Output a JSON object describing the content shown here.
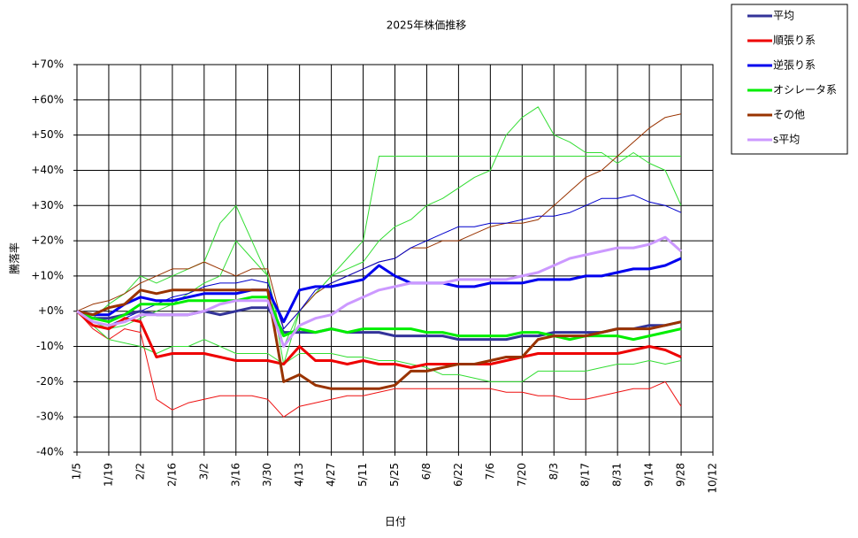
{
  "chart_data": {
    "type": "line",
    "title": "2025年株価推移",
    "x_label": "日付",
    "y_label": "騰落率",
    "categories": [
      "1/5",
      null,
      "1/19",
      null,
      "2/2",
      null,
      "2/16",
      null,
      "3/2",
      null,
      "3/16",
      null,
      "3/30",
      null,
      "4/13",
      null,
      "4/27",
      null,
      "5/11",
      null,
      "5/25",
      null,
      "6/8",
      null,
      "6/22",
      null,
      "7/6",
      null,
      "7/20",
      null,
      "8/3",
      null,
      "8/17",
      null,
      "8/31",
      null,
      "9/14",
      null,
      "9/28",
      null,
      "10/12"
    ],
    "ylim": [
      -40,
      70
    ],
    "yticks": [
      {
        "value": -40,
        "label": "-40%"
      },
      {
        "value": -30,
        "label": "-30%"
      },
      {
        "value": -20,
        "label": "-20%"
      },
      {
        "value": -10,
        "label": "-10%"
      },
      {
        "value": 0,
        "label": "+0%"
      },
      {
        "value": 10,
        "label": "+10%"
      },
      {
        "value": 20,
        "label": "+20%"
      },
      {
        "value": 30,
        "label": "+30%"
      },
      {
        "value": 40,
        "label": "+40%"
      },
      {
        "value": 50,
        "label": "+50%"
      },
      {
        "value": 60,
        "label": "+60%"
      },
      {
        "value": 70,
        "label": "+70%"
      }
    ],
    "grid": true,
    "legend": "top-right",
    "series": [
      {
        "color": "#33dd33",
        "values": [
          0,
          -2,
          2,
          5,
          10,
          8,
          10,
          12,
          14,
          25,
          30,
          20,
          10,
          -10,
          0,
          5,
          10,
          15,
          20,
          44,
          44,
          44,
          44,
          44,
          44,
          44,
          44,
          44,
          44,
          44,
          44,
          44,
          44,
          44,
          44,
          44,
          44,
          44,
          44,
          null,
          null
        ]
      },
      {
        "color": "#33dd33",
        "values": [
          0,
          -3,
          -5,
          -4,
          -2,
          0,
          2,
          5,
          8,
          10,
          20,
          15,
          10,
          -15,
          0,
          5,
          10,
          12,
          14,
          20,
          24,
          26,
          30,
          32,
          35,
          38,
          40,
          50,
          55,
          58,
          50,
          48,
          45,
          45,
          42,
          45,
          42,
          40,
          30,
          null,
          null
        ]
      },
      {
        "color": "#ee1111",
        "values": [
          0,
          -5,
          -8,
          -5,
          -6,
          -25,
          -28,
          -26,
          -25,
          -24,
          -24,
          -24,
          -25,
          -30,
          -27,
          -26,
          -25,
          -24,
          -24,
          -23,
          -22,
          -22,
          -22,
          -22,
          -22,
          -22,
          -22,
          -23,
          -23,
          -24,
          -24,
          -25,
          -25,
          -24,
          -23,
          -22,
          -22,
          -20,
          -27,
          null,
          null
        ]
      },
      {
        "color": "#993300",
        "values": [
          0,
          2,
          3,
          5,
          8,
          10,
          12,
          12,
          14,
          12,
          10,
          12,
          12,
          -5,
          0,
          5,
          8,
          10,
          12,
          14,
          15,
          18,
          18,
          20,
          20,
          22,
          24,
          25,
          25,
          26,
          30,
          34,
          38,
          40,
          44,
          48,
          52,
          55,
          56,
          null,
          null
        ]
      },
      {
        "color": "#0000cc",
        "values": [
          0,
          -3,
          -4,
          -2,
          0,
          2,
          4,
          5,
          7,
          8,
          8,
          9,
          8,
          -5,
          0,
          6,
          8,
          10,
          12,
          14,
          15,
          18,
          20,
          22,
          24,
          24,
          25,
          25,
          26,
          27,
          27,
          28,
          30,
          32,
          32,
          33,
          31,
          30,
          28,
          null,
          null
        ]
      },
      {
        "color": "#33dd33",
        "values": [
          0,
          -4,
          -8,
          -9,
          -10,
          -12,
          -10,
          -10,
          -8,
          -10,
          -12,
          -12,
          -12,
          -15,
          -12,
          -12,
          -12,
          -13,
          -13,
          -14,
          -14,
          -15,
          -16,
          -18,
          -18,
          -19,
          -20,
          -20,
          -20,
          -17,
          -17,
          -17,
          -17,
          -16,
          -15,
          -15,
          -14,
          -15,
          -14,
          null,
          null
        ]
      },
      {
        "name": "平均",
        "color": "#333399",
        "values": [
          0,
          -2,
          -2,
          -1,
          0,
          -1,
          -1,
          -1,
          0,
          -1,
          0,
          1,
          1,
          -6,
          -6,
          -6,
          -5,
          -6,
          -6,
          -6,
          -7,
          -7,
          -7,
          -7,
          -8,
          -8,
          -8,
          -8,
          -7,
          -7,
          -6,
          -6,
          -6,
          -6,
          -5,
          -5,
          -4,
          -4,
          -3,
          null,
          null
        ]
      },
      {
        "name": "順張り系",
        "color": "#ee0000",
        "values": [
          0,
          -4,
          -5,
          -2,
          -3,
          -13,
          -12,
          -12,
          -12,
          -13,
          -14,
          -14,
          -14,
          -15,
          -10,
          -14,
          -14,
          -15,
          -14,
          -15,
          -15,
          -16,
          -15,
          -15,
          -15,
          -15,
          -15,
          -14,
          -13,
          -12,
          -12,
          -12,
          -12,
          -12,
          -12,
          -11,
          -10,
          -11,
          -13,
          null,
          null
        ]
      },
      {
        "name": "逆張り系",
        "color": "#0000ee",
        "values": [
          0,
          -1,
          -1,
          2,
          4,
          3,
          3,
          4,
          5,
          5,
          5,
          6,
          6,
          -3,
          6,
          7,
          7,
          8,
          9,
          13,
          10,
          8,
          8,
          8,
          7,
          7,
          8,
          8,
          8,
          9,
          9,
          9,
          10,
          10,
          11,
          12,
          12,
          13,
          15,
          null,
          null
        ]
      },
      {
        "name": "オシレータ系",
        "color": "#00ee00",
        "values": [
          0,
          -2,
          -3,
          -1,
          2,
          2,
          2,
          3,
          3,
          3,
          3,
          4,
          4,
          -7,
          -5,
          -6,
          -5,
          -6,
          -5,
          -5,
          -5,
          -5,
          -6,
          -6,
          -7,
          -7,
          -7,
          -7,
          -6,
          -6,
          -7,
          -8,
          -7,
          -7,
          -7,
          -8,
          -7,
          -6,
          -5,
          null,
          null
        ]
      },
      {
        "name": "その他",
        "color": "#993300",
        "values": [
          0,
          -1,
          1,
          2,
          6,
          5,
          6,
          6,
          6,
          6,
          6,
          6,
          6,
          -20,
          -18,
          -21,
          -22,
          -22,
          -22,
          -22,
          -21,
          -17,
          -17,
          -16,
          -15,
          -15,
          -14,
          -13,
          -13,
          -8,
          -7,
          -7,
          -7,
          -6,
          -5,
          -5,
          -5,
          -4,
          -3,
          null,
          null
        ]
      },
      {
        "name": "s平均",
        "color": "#cc99ff",
        "values": [
          0,
          -3,
          -4,
          -3,
          -1,
          -1,
          -1,
          -1,
          0,
          2,
          3,
          3,
          3,
          -10,
          -4,
          -2,
          -1,
          2,
          4,
          6,
          7,
          8,
          8,
          8,
          9,
          9,
          9,
          9,
          10,
          11,
          13,
          15,
          16,
          17,
          18,
          18,
          19,
          21,
          17,
          null,
          null
        ]
      }
    ]
  }
}
